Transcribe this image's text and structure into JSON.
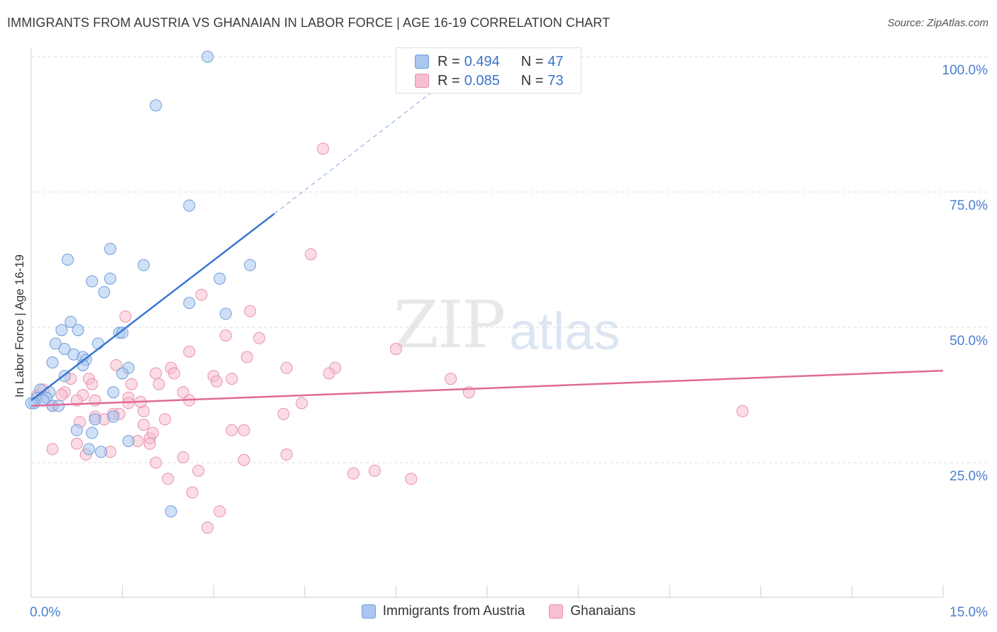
{
  "chart_data": {
    "type": "scatter",
    "title": "IMMIGRANTS FROM AUSTRIA VS GHANAIAN IN LABOR FORCE | AGE 16-19 CORRELATION CHART",
    "source": "Source: ZipAtlas.com",
    "ylabel": "In Labor Force | Age 16-19",
    "xlim": [
      0,
      15
    ],
    "ylim": [
      0,
      105
    ],
    "x_tick_labels": [
      "0.0%",
      "15.0%"
    ],
    "y_ticks": [
      25,
      50,
      75,
      100
    ],
    "y_tick_labels": [
      "25.0%",
      "50.0%",
      "75.0%",
      "100.0%"
    ],
    "watermark": [
      "ZIP",
      "atlas"
    ],
    "legend_stats": [
      {
        "r_label": "R =",
        "r_value": "0.494",
        "n_label": "N =",
        "n_value": "47"
      },
      {
        "r_label": "R =",
        "r_value": "0.085",
        "n_label": "N =",
        "n_value": "73"
      }
    ],
    "series": [
      {
        "name": "Immigrants from Austria",
        "color_fill": "#a9c7f0",
        "color_stroke": "#6f9ed8",
        "line_color": "#3b75d0",
        "trend": {
          "x0": 0.0,
          "y0": 36.5,
          "x1": 4.0,
          "y1": 71.0,
          "dash_x_end": 7.0,
          "dash_y_end": 97.0
        },
        "points": [
          [
            2.9,
            100.0
          ],
          [
            2.05,
            91.0
          ],
          [
            2.6,
            72.5
          ],
          [
            0.6,
            62.5
          ],
          [
            1.3,
            64.5
          ],
          [
            1.85,
            61.5
          ],
          [
            3.6,
            61.5
          ],
          [
            1.0,
            58.5
          ],
          [
            1.3,
            59.0
          ],
          [
            3.1,
            59.0
          ],
          [
            1.2,
            56.5
          ],
          [
            2.6,
            54.5
          ],
          [
            3.2,
            52.5
          ],
          [
            0.65,
            51.0
          ],
          [
            0.5,
            49.5
          ],
          [
            0.77,
            49.5
          ],
          [
            1.45,
            49.0
          ],
          [
            1.5,
            49.0
          ],
          [
            0.4,
            47.0
          ],
          [
            1.1,
            47.0
          ],
          [
            0.55,
            46.0
          ],
          [
            0.7,
            45.0
          ],
          [
            0.85,
            44.5
          ],
          [
            0.9,
            44.0
          ],
          [
            0.35,
            43.5
          ],
          [
            0.85,
            43.0
          ],
          [
            1.6,
            42.5
          ],
          [
            1.5,
            41.5
          ],
          [
            0.55,
            41.0
          ],
          [
            0.15,
            38.5
          ],
          [
            0.3,
            38.0
          ],
          [
            1.35,
            38.0
          ],
          [
            0.1,
            37.0
          ],
          [
            0.25,
            37.0
          ],
          [
            0.2,
            36.5
          ],
          [
            0.05,
            36.0
          ],
          [
            0.35,
            35.5
          ],
          [
            0.45,
            35.5
          ],
          [
            1.35,
            33.5
          ],
          [
            1.05,
            33.0
          ],
          [
            0.75,
            31.0
          ],
          [
            1.0,
            30.5
          ],
          [
            1.6,
            29.0
          ],
          [
            0.95,
            27.5
          ],
          [
            1.15,
            27.0
          ],
          [
            2.3,
            16.0
          ],
          [
            0.0,
            36.0
          ]
        ]
      },
      {
        "name": "Ghanaians",
        "color_fill": "#f7bfd0",
        "color_stroke": "#e891ad",
        "line_color": "#e06a98",
        "trend": {
          "x0": 0.0,
          "y0": 35.5,
          "x1": 15.0,
          "y1": 42.0
        },
        "points": [
          [
            4.8,
            83.0
          ],
          [
            4.6,
            63.5
          ],
          [
            2.8,
            56.0
          ],
          [
            1.55,
            52.0
          ],
          [
            3.6,
            53.0
          ],
          [
            3.2,
            48.5
          ],
          [
            3.75,
            48.0
          ],
          [
            6.0,
            46.0
          ],
          [
            2.6,
            45.5
          ],
          [
            3.55,
            44.5
          ],
          [
            4.2,
            42.5
          ],
          [
            5.0,
            42.5
          ],
          [
            4.9,
            41.5
          ],
          [
            1.4,
            43.0
          ],
          [
            2.05,
            41.5
          ],
          [
            2.3,
            42.5
          ],
          [
            2.35,
            41.5
          ],
          [
            3.0,
            41.0
          ],
          [
            3.3,
            40.5
          ],
          [
            6.9,
            40.5
          ],
          [
            0.65,
            40.5
          ],
          [
            0.95,
            40.5
          ],
          [
            1.0,
            39.5
          ],
          [
            2.1,
            39.5
          ],
          [
            1.65,
            39.5
          ],
          [
            7.2,
            38.0
          ],
          [
            0.2,
            38.5
          ],
          [
            0.55,
            38.0
          ],
          [
            0.5,
            37.5
          ],
          [
            0.85,
            37.5
          ],
          [
            2.5,
            38.0
          ],
          [
            0.75,
            36.5
          ],
          [
            1.05,
            36.5
          ],
          [
            1.6,
            37.0
          ],
          [
            1.6,
            36.0
          ],
          [
            2.6,
            36.5
          ],
          [
            4.45,
            36.0
          ],
          [
            0.35,
            35.5
          ],
          [
            11.7,
            34.5
          ],
          [
            1.85,
            34.5
          ],
          [
            1.35,
            34.0
          ],
          [
            1.45,
            34.0
          ],
          [
            1.05,
            33.5
          ],
          [
            4.15,
            34.0
          ],
          [
            2.2,
            33.0
          ],
          [
            0.8,
            32.5
          ],
          [
            1.85,
            32.0
          ],
          [
            3.3,
            31.0
          ],
          [
            3.5,
            31.0
          ],
          [
            1.95,
            29.5
          ],
          [
            1.75,
            29.0
          ],
          [
            0.75,
            28.5
          ],
          [
            1.95,
            28.5
          ],
          [
            0.35,
            27.5
          ],
          [
            1.3,
            27.0
          ],
          [
            4.2,
            26.5
          ],
          [
            2.5,
            26.0
          ],
          [
            3.5,
            25.5
          ],
          [
            2.05,
            25.0
          ],
          [
            2.75,
            23.5
          ],
          [
            5.3,
            23.0
          ],
          [
            5.65,
            23.5
          ],
          [
            2.25,
            22.0
          ],
          [
            6.25,
            22.0
          ],
          [
            2.65,
            19.5
          ],
          [
            3.1,
            16.0
          ],
          [
            2.9,
            13.0
          ],
          [
            0.1,
            37.5
          ],
          [
            1.8,
            36.2
          ],
          [
            0.9,
            26.5
          ],
          [
            1.2,
            33.0
          ],
          [
            2.0,
            30.5
          ],
          [
            3.05,
            40.0
          ]
        ]
      }
    ]
  }
}
